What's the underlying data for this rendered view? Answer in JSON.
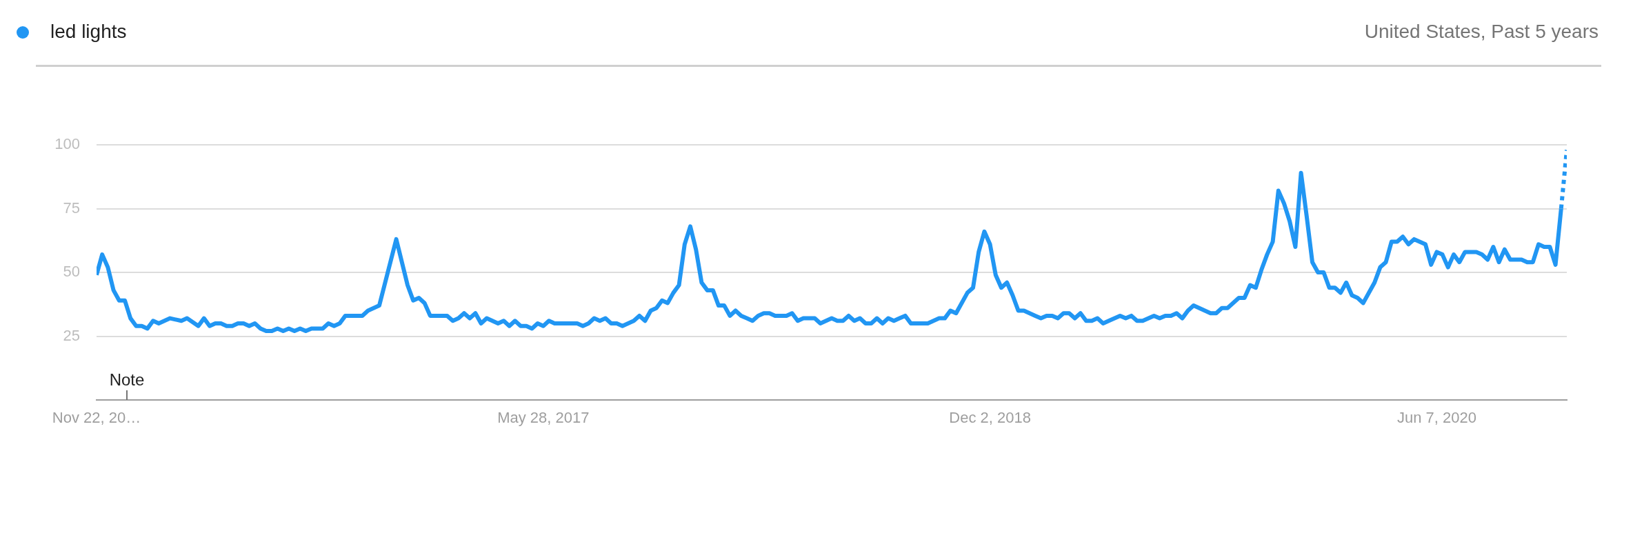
{
  "chart_data": {
    "type": "line",
    "ylim": [
      0,
      100
    ],
    "yticks": [
      25,
      50,
      75,
      100
    ],
    "grid": "y",
    "legend": "top left",
    "marker": "none",
    "xlim": [
      "2015-11-22",
      "2020-11-15"
    ],
    "xticks": [
      {
        "value": "2015-11-22",
        "label": "Nov 22, 20…"
      },
      {
        "value": "2017-05-28",
        "label": "May 28, 2017"
      },
      {
        "value": "2018-12-02",
        "label": "Dec 2, 2018"
      },
      {
        "value": "2020-06-07",
        "label": "Jun 7, 2020"
      }
    ],
    "annotations": [
      "United States, Past 5 years",
      "Note"
    ],
    "series": [
      {
        "name": "led lights",
        "color": "#2196f3",
        "line_style": "solid",
        "x": [
          "2015-11-22",
          "2015-11-29",
          "2015-12-06",
          "2015-12-13",
          "2015-12-20",
          "2015-12-27",
          "2016-01-03",
          "2016-01-10",
          "2016-01-17",
          "2016-01-24",
          "2016-01-31",
          "2016-02-07",
          "2016-02-21",
          "2016-03-06",
          "2016-03-13",
          "2016-03-27",
          "2016-04-03",
          "2016-04-10",
          "2016-04-17",
          "2016-04-24",
          "2016-05-01",
          "2016-05-08",
          "2016-05-15",
          "2016-05-22",
          "2016-05-29",
          "2016-06-05",
          "2016-06-12",
          "2016-06-19",
          "2016-06-26",
          "2016-07-03",
          "2016-07-10",
          "2016-07-17",
          "2016-07-24",
          "2016-07-31",
          "2016-08-07",
          "2016-08-14",
          "2016-08-28",
          "2016-09-04",
          "2016-09-11",
          "2016-09-18",
          "2016-09-25",
          "2016-10-16",
          "2016-10-23",
          "2016-11-06",
          "2016-11-27",
          "2016-12-11",
          "2016-12-18",
          "2016-12-25",
          "2017-01-01",
          "2017-01-08",
          "2017-01-29",
          "2017-02-05",
          "2017-02-12",
          "2017-02-19",
          "2017-02-26",
          "2017-03-05",
          "2017-03-12",
          "2017-03-19",
          "2017-04-02",
          "2017-04-09",
          "2017-04-16",
          "2017-04-23",
          "2017-04-30",
          "2017-05-07",
          "2017-05-14",
          "2017-05-21",
          "2017-05-28",
          "2017-06-04",
          "2017-06-11",
          "2017-07-09",
          "2017-07-16",
          "2017-07-23",
          "2017-07-30",
          "2017-08-06",
          "2017-08-13",
          "2017-08-20",
          "2017-08-27",
          "2017-09-03",
          "2017-09-10",
          "2017-09-17",
          "2017-09-24",
          "2017-10-01",
          "2017-10-08",
          "2017-10-15",
          "2017-10-22",
          "2017-10-29",
          "2017-11-05",
          "2017-11-12",
          "2017-11-19",
          "2017-11-26",
          "2017-12-03",
          "2017-12-10",
          "2017-12-17",
          "2017-12-24",
          "2017-12-31",
          "2018-01-07",
          "2018-01-14",
          "2018-01-21",
          "2018-01-28",
          "2018-02-04",
          "2018-02-11",
          "2018-02-18",
          "2018-02-25",
          "2018-03-04",
          "2018-03-11",
          "2018-03-25",
          "2018-04-01",
          "2018-04-08",
          "2018-04-15",
          "2018-04-29",
          "2018-05-06",
          "2018-05-20",
          "2018-05-27",
          "2018-06-03",
          "2018-06-10",
          "2018-06-17",
          "2018-06-24",
          "2018-07-01",
          "2018-07-08",
          "2018-07-15",
          "2018-07-22",
          "2018-07-29",
          "2018-08-05",
          "2018-08-12",
          "2018-08-19",
          "2018-08-26",
          "2018-09-16",
          "2018-09-30",
          "2018-10-07",
          "2018-10-14",
          "2018-10-21",
          "2018-11-04",
          "2018-11-11",
          "2018-11-18",
          "2018-11-25",
          "2018-12-02",
          "2018-12-09",
          "2018-12-16",
          "2018-12-23",
          "2018-12-30",
          "2019-01-06",
          "2019-01-13",
          "2019-01-20",
          "2019-01-27",
          "2019-02-03",
          "2019-02-10",
          "2019-02-17",
          "2019-02-24",
          "2019-03-03",
          "2019-03-10",
          "2019-03-17",
          "2019-03-24",
          "2019-03-31",
          "2019-04-07",
          "2019-04-14",
          "2019-04-21",
          "2019-04-28",
          "2019-05-12",
          "2019-05-19",
          "2019-05-26",
          "2019-06-02",
          "2019-06-09",
          "2019-06-23",
          "2019-06-30",
          "2019-07-07",
          "2019-07-14",
          "2019-07-21",
          "2019-07-28",
          "2019-08-04",
          "2019-08-11",
          "2019-09-01",
          "2019-09-08",
          "2019-09-15",
          "2019-09-22",
          "2019-10-06",
          "2019-10-13",
          "2019-10-20",
          "2019-10-27",
          "2019-11-03",
          "2019-11-10",
          "2019-11-17",
          "2019-11-24",
          "2019-12-01",
          "2019-12-08",
          "2019-12-15",
          "2019-12-22",
          "2019-12-29",
          "2020-01-05",
          "2020-01-12",
          "2020-01-19",
          "2020-01-26",
          "2020-02-02",
          "2020-02-09",
          "2020-02-16",
          "2020-02-23",
          "2020-03-01",
          "2020-03-08",
          "2020-03-22",
          "2020-03-29",
          "2020-04-05",
          "2020-04-12",
          "2020-04-19",
          "2020-04-26",
          "2020-05-03",
          "2020-05-10",
          "2020-05-24",
          "2020-05-31",
          "2020-06-07",
          "2020-06-14",
          "2020-06-21",
          "2020-06-28",
          "2020-07-05",
          "2020-07-12",
          "2020-07-26",
          "2020-08-02",
          "2020-08-09",
          "2020-08-16",
          "2020-08-23",
          "2020-08-30",
          "2020-09-06",
          "2020-09-20",
          "2020-09-27",
          "2020-10-04",
          "2020-10-11",
          "2020-10-18",
          "2020-10-25",
          "2020-11-01",
          "2020-11-08"
        ],
        "values": [
          49,
          57,
          52,
          43,
          39,
          39,
          32,
          29,
          29,
          28,
          31,
          30,
          32,
          31,
          32,
          29,
          32,
          29,
          30,
          30,
          29,
          29,
          30,
          30,
          29,
          30,
          28,
          27,
          27,
          28,
          27,
          28,
          27,
          28,
          27,
          28,
          28,
          30,
          29,
          30,
          33,
          33,
          35,
          37,
          63,
          45,
          39,
          40,
          38,
          33,
          33,
          31,
          32,
          34,
          32,
          34,
          30,
          32,
          30,
          31,
          29,
          31,
          29,
          29,
          28,
          30,
          29,
          31,
          30,
          30,
          29,
          30,
          32,
          31,
          32,
          30,
          30,
          29,
          30,
          31,
          33,
          31,
          35,
          36,
          39,
          38,
          42,
          45,
          61,
          68,
          59,
          46,
          43,
          43,
          37,
          37,
          33,
          35,
          33,
          32,
          31,
          33,
          34,
          34,
          33,
          33,
          34,
          31,
          32,
          32,
          30,
          32,
          31,
          31,
          33,
          31,
          32,
          30,
          30,
          32,
          30,
          32,
          31,
          32,
          33,
          30,
          30,
          32,
          32,
          35,
          34,
          42,
          44,
          58,
          66,
          61,
          49,
          44,
          46,
          41,
          35,
          35,
          34,
          33,
          32,
          33,
          33,
          32,
          34,
          34,
          32,
          34,
          31,
          31,
          32,
          30,
          31,
          33,
          32,
          33,
          31,
          31,
          33,
          32,
          33,
          33,
          34,
          32,
          35,
          37,
          34,
          34,
          36,
          36,
          40,
          40,
          45,
          44,
          51,
          57,
          62,
          82,
          77,
          70,
          60,
          89,
          72,
          54,
          50,
          50,
          44,
          44,
          42,
          46,
          41,
          40,
          38,
          46,
          52,
          54,
          62,
          62,
          64,
          61,
          63,
          61,
          53,
          58,
          57,
          52,
          57,
          54,
          58,
          58,
          57,
          55,
          60,
          54,
          59,
          55,
          55,
          54,
          54,
          61,
          60,
          60,
          53,
          75
        ]
      },
      {
        "color": "#2196f3",
        "line_style": "dotted",
        "x": [
          "2020-11-08",
          "2020-11-15"
        ],
        "values": [
          75,
          98
        ]
      }
    ]
  }
}
